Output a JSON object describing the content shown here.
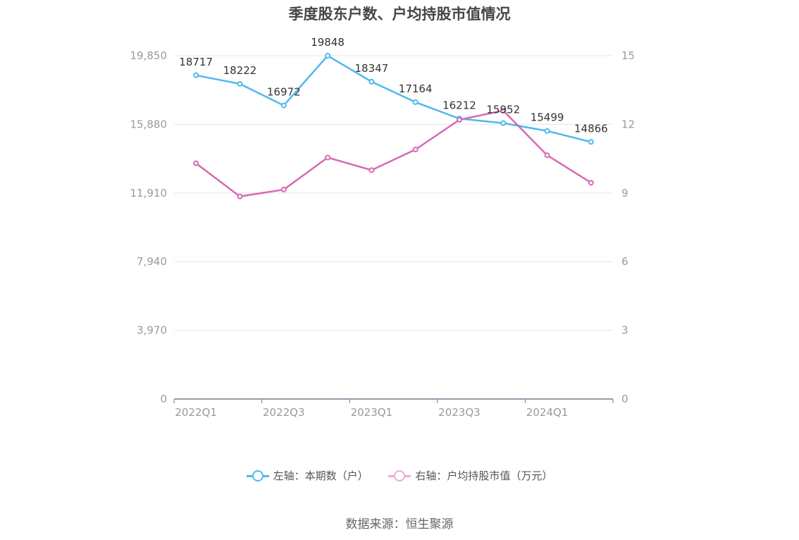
{
  "title": "季度股东户数、户均持股市值情况",
  "source": "数据来源：恒生聚源",
  "colors": {
    "left": "#4fb9ea",
    "right": "#d56ab3"
  },
  "chart_data": {
    "type": "line",
    "title": "季度股东户数、户均持股市值情况",
    "categories": [
      "2022Q1",
      "2022Q2",
      "2022Q3",
      "2022Q4",
      "2023Q1",
      "2023Q2",
      "2023Q3",
      "2023Q4",
      "2024Q1",
      "2024Q2"
    ],
    "x_tick_labels": [
      "2022Q1",
      "2022Q3",
      "2023Q1",
      "2023Q3",
      "2024Q1"
    ],
    "y_left": {
      "ticks": [
        "0",
        "3,970",
        "7,940",
        "11,910",
        "15,880",
        "19,850"
      ],
      "range": [
        0,
        19850
      ]
    },
    "y_right": {
      "ticks": [
        "0",
        "3",
        "6",
        "9",
        "12",
        "15"
      ],
      "range": [
        0,
        15
      ]
    },
    "series": [
      {
        "name": "左轴：本期数（户）",
        "axis": "left",
        "color": "#4fb9ea",
        "values": [
          18717,
          18222,
          16972,
          19848,
          18347,
          17164,
          16212,
          15952,
          15499,
          14866
        ],
        "labels": [
          "18717",
          "18222",
          "16972",
          "19848",
          "18347",
          "17164",
          "16212",
          "15952",
          "15499",
          "14866"
        ]
      },
      {
        "name": "右轴：户均持股市值（万元）",
        "axis": "right",
        "color": "#d56ab3",
        "values": [
          10.3,
          8.85,
          9.15,
          10.55,
          10.0,
          10.9,
          12.2,
          12.6,
          10.65,
          9.45
        ]
      }
    ],
    "grid": true,
    "legend_position": "bottom"
  }
}
